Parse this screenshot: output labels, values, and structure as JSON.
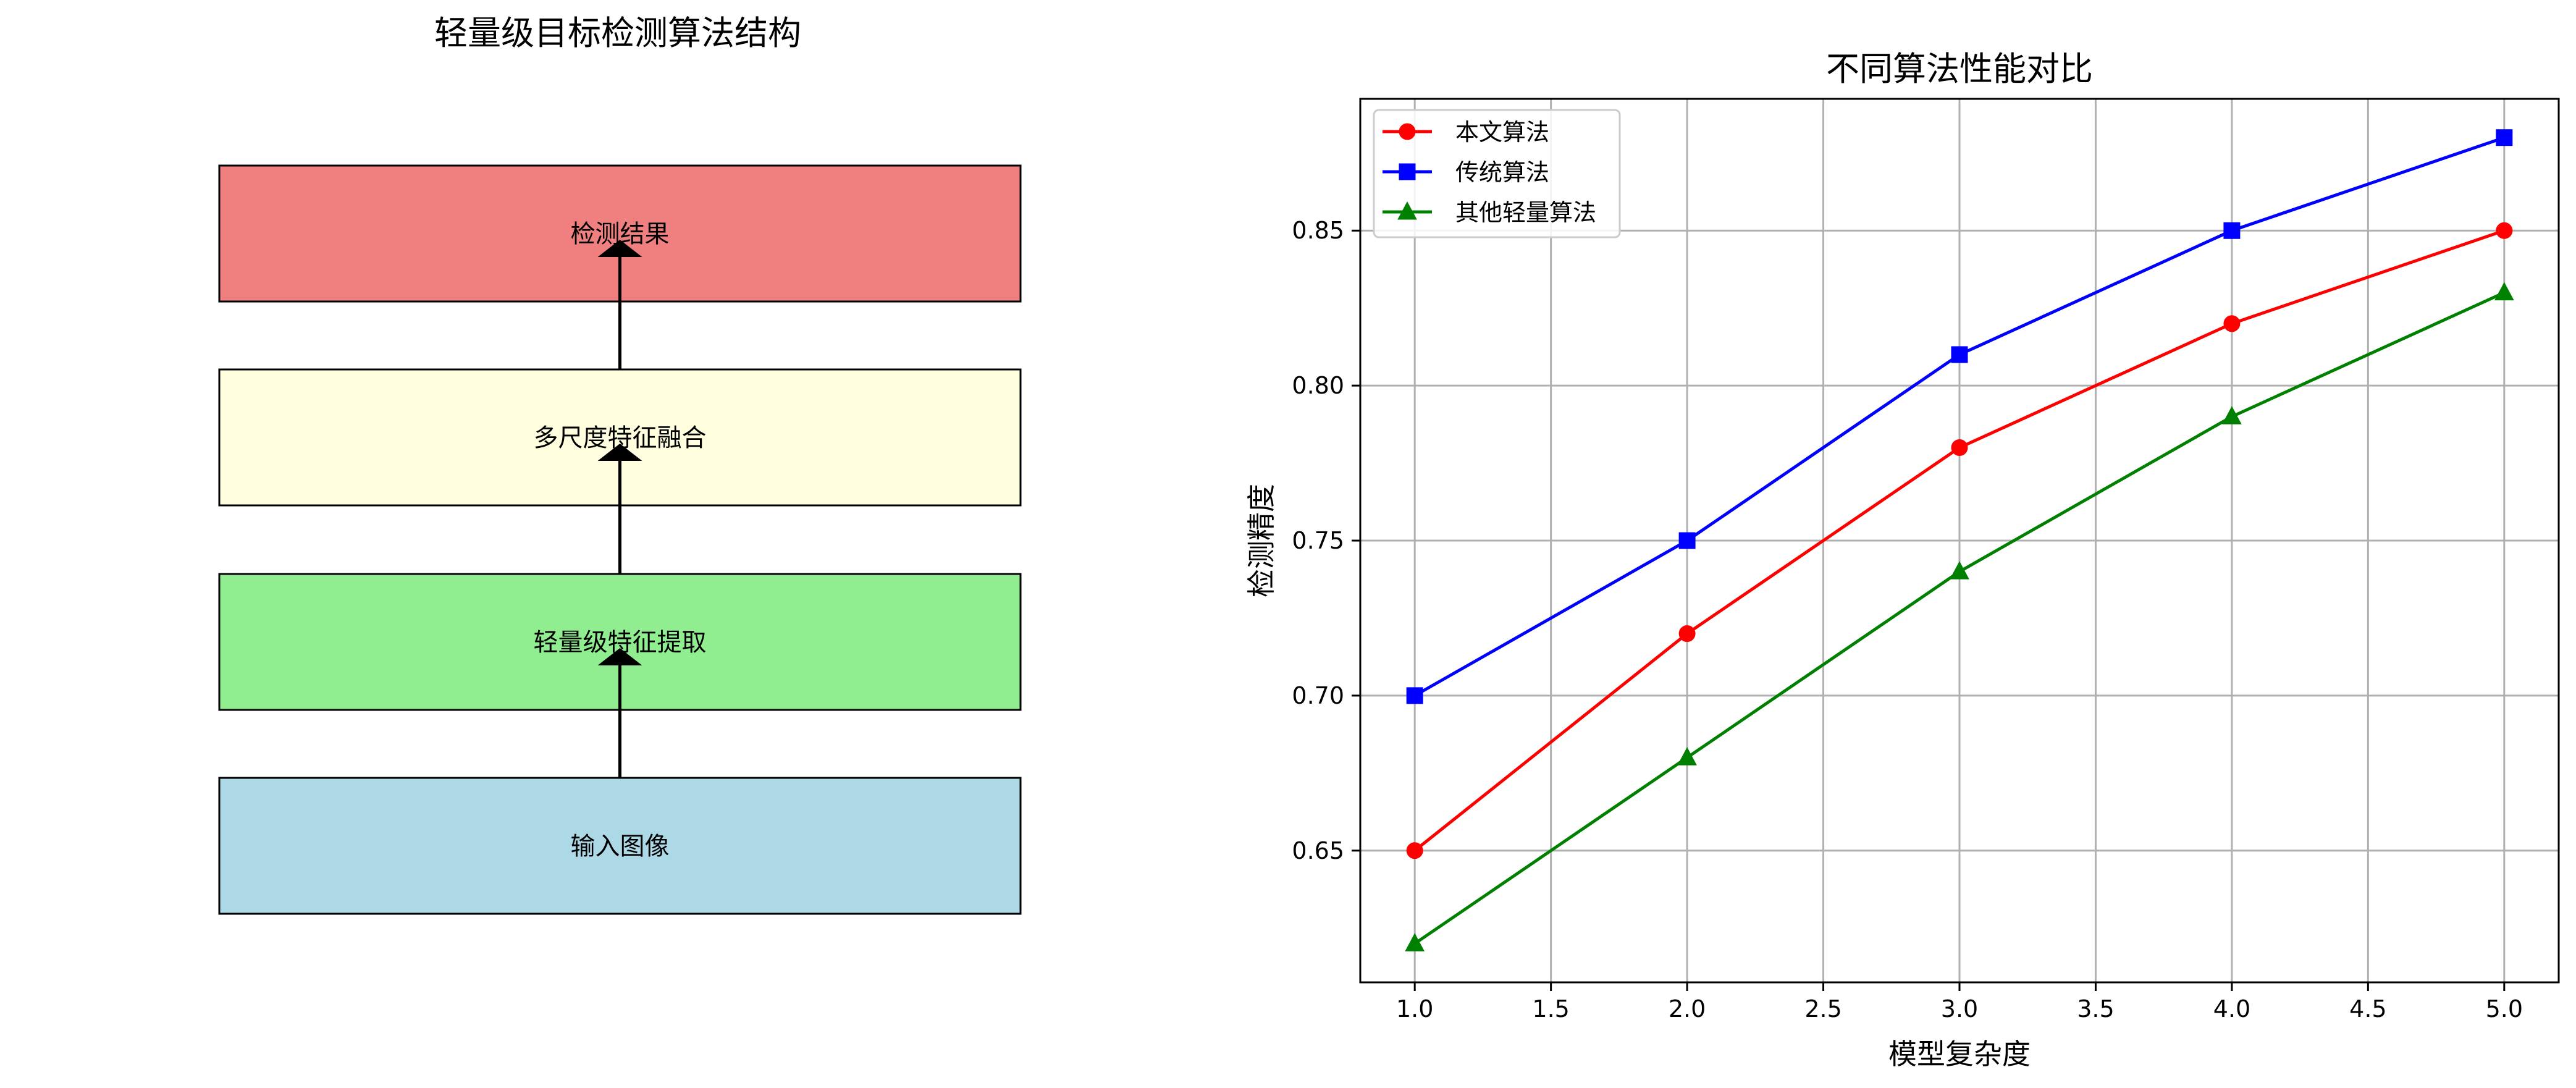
{
  "diagram": {
    "title": "轻量级目标检测算法结构",
    "boxes": [
      {
        "label": "检测结果",
        "color": "#f08080"
      },
      {
        "label": "多尺度特征融合",
        "color": "#ffffe0"
      },
      {
        "label": "轻量级特征提取",
        "color": "#90ee90"
      },
      {
        "label": "输入图像",
        "color": "#add8e6"
      }
    ]
  },
  "chart_data": {
    "type": "line",
    "title": "不同算法性能对比",
    "xlabel": "模型复杂度",
    "ylabel": "检测精度",
    "x": [
      1.0,
      2.0,
      3.0,
      4.0,
      5.0
    ],
    "xlim": [
      0.8,
      5.2
    ],
    "ylim": [
      0.6075,
      0.8925
    ],
    "xticks": [
      "1.0",
      "1.5",
      "2.0",
      "2.5",
      "3.0",
      "3.5",
      "4.0",
      "4.5",
      "5.0"
    ],
    "yticks": [
      "0.65",
      "0.70",
      "0.75",
      "0.80",
      "0.85"
    ],
    "grid": true,
    "legend_position": "upper-left",
    "series": [
      {
        "name": "本文算法",
        "color": "#ff0000",
        "marker": "circle",
        "values": [
          0.65,
          0.72,
          0.78,
          0.82,
          0.85
        ]
      },
      {
        "name": "传统算法",
        "color": "#0000ff",
        "marker": "square",
        "values": [
          0.7,
          0.75,
          0.81,
          0.85,
          0.88
        ]
      },
      {
        "name": "其他轻量算法",
        "color": "#008000",
        "marker": "triangle",
        "values": [
          0.62,
          0.68,
          0.74,
          0.79,
          0.83
        ]
      }
    ]
  }
}
